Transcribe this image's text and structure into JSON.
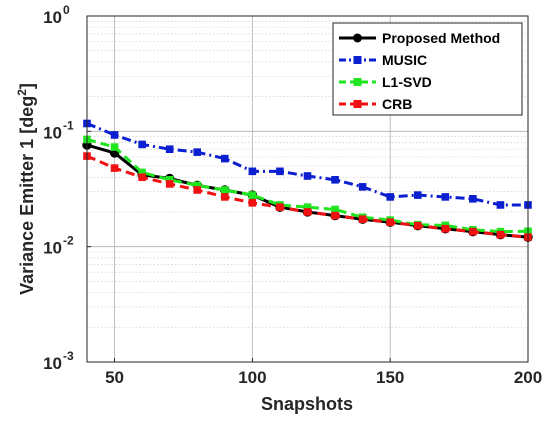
{
  "chart_data": {
    "type": "line",
    "xlabel": "Snapshots",
    "ylabel": "Variance Emitter 1 [deg",
    "ylabel_sup": "2",
    "ylabel_end": "]",
    "xlim": [
      40,
      200
    ],
    "ylim": [
      0.001,
      1
    ],
    "yscale": "log",
    "grid": true,
    "legend_position": "top-right",
    "x_ticks": [
      50,
      100,
      150,
      200
    ],
    "x_tick_labels": [
      "50",
      "100",
      "150",
      "200"
    ],
    "y_ticks": [
      0.001,
      0.01,
      0.1,
      1
    ],
    "y_tick_labels": [
      {
        "base": "10",
        "exp": "-3"
      },
      {
        "base": "10",
        "exp": "-2"
      },
      {
        "base": "10",
        "exp": "-1"
      },
      {
        "base": "10",
        "exp": "0"
      }
    ],
    "x": [
      40,
      50,
      60,
      70,
      80,
      90,
      100,
      110,
      120,
      130,
      140,
      150,
      160,
      170,
      180,
      190,
      200
    ],
    "series": [
      {
        "name": "Proposed Method",
        "color": "#000000",
        "line_style": "solid",
        "marker": "circle",
        "values": [
          0.076,
          0.065,
          0.042,
          0.039,
          0.034,
          0.031,
          0.028,
          0.022,
          0.02,
          0.0186,
          0.0173,
          0.0163,
          0.0152,
          0.0143,
          0.0135,
          0.0127,
          0.0121
        ]
      },
      {
        "name": "MUSIC",
        "color": "#0b1fd0",
        "line_style": "dashdot",
        "marker": "square",
        "values": [
          0.117,
          0.093,
          0.077,
          0.07,
          0.066,
          0.058,
          0.045,
          0.045,
          0.041,
          0.038,
          0.033,
          0.027,
          0.028,
          0.027,
          0.026,
          0.023,
          0.023
        ]
      },
      {
        "name": "L1-SVD",
        "color": "#1ee51e",
        "line_style": "dashed",
        "marker": "square",
        "values": [
          0.085,
          0.073,
          0.044,
          0.038,
          0.034,
          0.031,
          0.028,
          0.023,
          0.022,
          0.021,
          0.018,
          0.017,
          0.0155,
          0.0153,
          0.014,
          0.0135,
          0.0136
        ]
      },
      {
        "name": "CRB",
        "color": "#f01212",
        "line_style": "dashed",
        "marker": "square",
        "values": [
          0.061,
          0.048,
          0.04,
          0.035,
          0.031,
          0.027,
          0.024,
          0.022,
          0.02,
          0.0186,
          0.0173,
          0.0163,
          0.0152,
          0.0143,
          0.0135,
          0.0127,
          0.0121
        ]
      }
    ]
  }
}
